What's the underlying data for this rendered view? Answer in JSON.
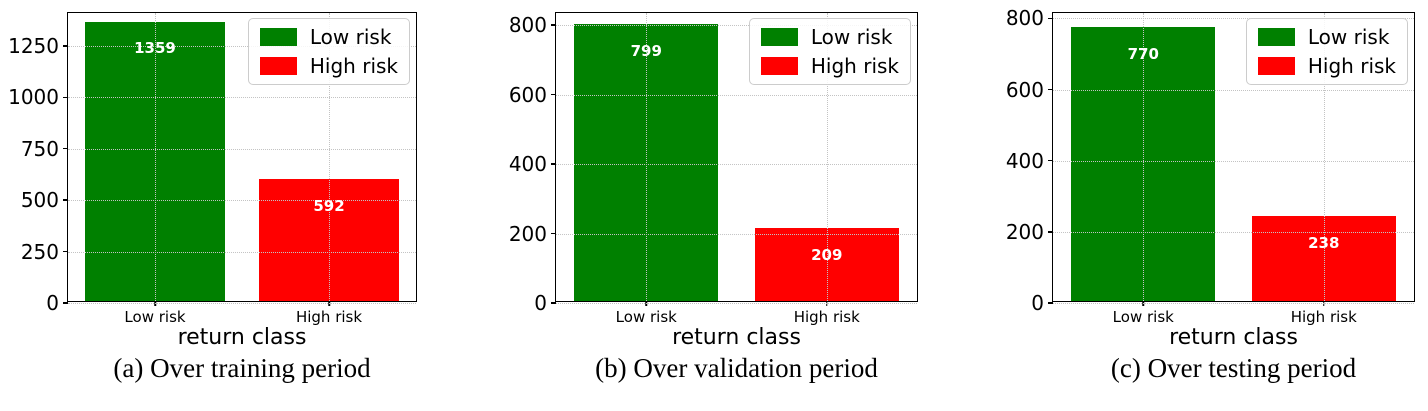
{
  "figure": {
    "background": "#ffffff"
  },
  "colors": {
    "low_risk": "#008000",
    "high_risk": "#ff0000",
    "grid": "#c3c3c3",
    "spine": "#000000",
    "bar_value_text": "#ffffff"
  },
  "chart_data": [
    {
      "type": "bar",
      "caption": "(a) Over training period",
      "xlabel": "return class",
      "categories": [
        "Low risk",
        "High risk"
      ],
      "values": [
        1359,
        592
      ],
      "bar_colors": [
        "#008000",
        "#ff0000"
      ],
      "bar_labels": [
        "1359",
        "592"
      ],
      "yticks": [
        0,
        250,
        500,
        750,
        1000,
        1250
      ],
      "ylim": [
        0,
        1410
      ],
      "grid": true,
      "legend_position": "upper right",
      "legend": [
        {
          "label": "Low risk",
          "color": "#008000"
        },
        {
          "label": "High risk",
          "color": "#ff0000"
        }
      ]
    },
    {
      "type": "bar",
      "caption": "(b) Over validation period",
      "xlabel": "return class",
      "categories": [
        "Low risk",
        "High risk"
      ],
      "values": [
        799,
        209
      ],
      "bar_colors": [
        "#008000",
        "#ff0000"
      ],
      "bar_labels": [
        "799",
        "209"
      ],
      "yticks": [
        0,
        200,
        400,
        600,
        800
      ],
      "ylim": [
        0,
        835
      ],
      "grid": true,
      "legend_position": "upper right",
      "legend": [
        {
          "label": "Low risk",
          "color": "#008000"
        },
        {
          "label": "High risk",
          "color": "#ff0000"
        }
      ]
    },
    {
      "type": "bar",
      "caption": "(c) Over testing period",
      "xlabel": "return class",
      "categories": [
        "Low risk",
        "High risk"
      ],
      "values": [
        770,
        238
      ],
      "bar_colors": [
        "#008000",
        "#ff0000"
      ],
      "bar_labels": [
        "770",
        "238"
      ],
      "yticks": [
        0,
        200,
        400,
        600,
        800
      ],
      "ylim": [
        0,
        815
      ],
      "grid": true,
      "legend_position": "upper right",
      "legend": [
        {
          "label": "Low risk",
          "color": "#008000"
        },
        {
          "label": "High risk",
          "color": "#ff0000"
        }
      ]
    }
  ]
}
